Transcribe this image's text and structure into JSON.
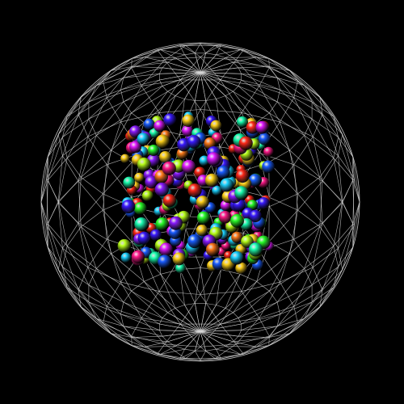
{
  "scene": {
    "background": "#000000",
    "wireframe": {
      "kind": "geodesic-sphere",
      "color": "#d8d8d8",
      "latitude_rings": 12,
      "longitude_lines": 24
    },
    "particles": {
      "kind": "colored-spheres",
      "count": 260,
      "palette": [
        "#ff2a1a",
        "#ff7a1a",
        "#ffd21a",
        "#b8ff1a",
        "#2aff2a",
        "#1affb0",
        "#1ad2ff",
        "#1a5cff",
        "#3a1aff",
        "#8a1aff",
        "#e01aff",
        "#ff1a8a"
      ]
    }
  }
}
